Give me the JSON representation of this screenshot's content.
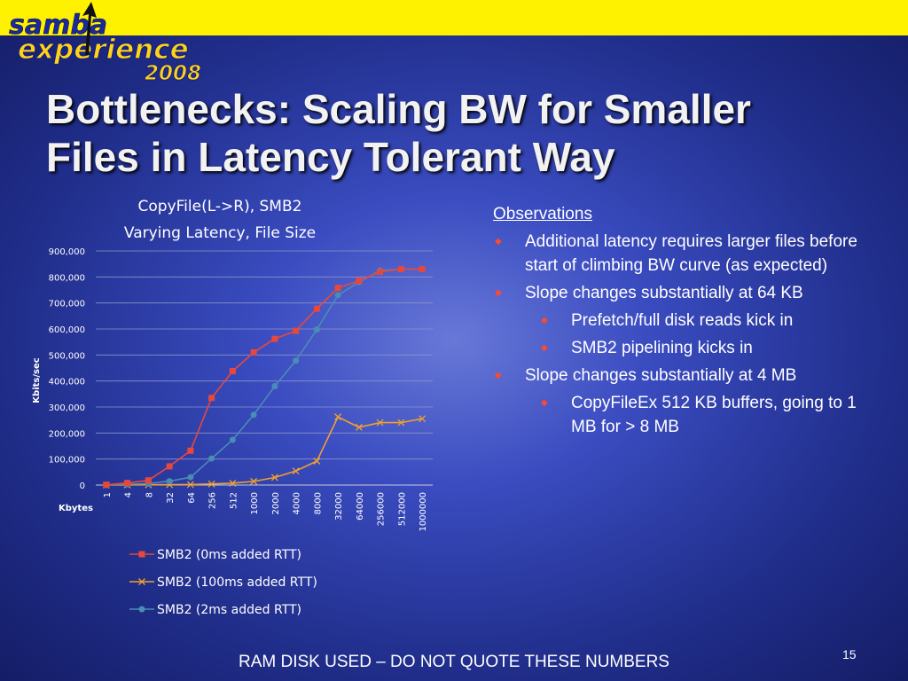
{
  "logo": {
    "line1": "samba",
    "line2": "experience",
    "line3": "2008"
  },
  "slide": {
    "title_line1": "Bottlenecks: Scaling BW for Smaller",
    "title_line2": "Files in Latency Tolerant Way",
    "footer": "RAM DISK USED – DO NOT QUOTE THESE NUMBERS",
    "page_number": "15"
  },
  "observations": {
    "heading": "Observations",
    "bullets": [
      {
        "level": 1,
        "text": "Additional latency requires larger files before start of climbing BW curve (as expected)"
      },
      {
        "level": 1,
        "text": "Slope changes substantially at 64 KB"
      },
      {
        "level": 2,
        "text": "Prefetch/full disk reads kick in"
      },
      {
        "level": 2,
        "text": "SMB2 pipelining kicks in"
      },
      {
        "level": 1,
        "text": "Slope changes substantially at 4 MB"
      },
      {
        "level": 2,
        "text": "CopyFileEx 512 KB buffers, going to 1 MB for > 8 MB"
      }
    ]
  },
  "chart_data": {
    "type": "line",
    "title_line1": "CopyFile(L->R), SMB2",
    "title_line2": "Varying Latency, File Size",
    "xlabel": "Kbytes",
    "ylabel": "Kbits/sec",
    "ylim": [
      0,
      900000
    ],
    "yticks": [
      "0",
      "100,000",
      "200,000",
      "300,000",
      "400,000",
      "500,000",
      "600,000",
      "700,000",
      "800,000",
      "900,000"
    ],
    "categories": [
      "1",
      "4",
      "8",
      "32",
      "64",
      "256",
      "512",
      "1000",
      "2000",
      "4000",
      "8000",
      "32000",
      "64000",
      "256000",
      "512000",
      "1000000"
    ],
    "grid": true,
    "legend_position": "bottom",
    "series": [
      {
        "name": "SMB2 (0ms added RTT)",
        "color": "#e8483c",
        "marker": "square",
        "values": [
          1000,
          8000,
          18000,
          72000,
          132000,
          335000,
          438000,
          510000,
          562000,
          593000,
          678000,
          758000,
          785000,
          820000,
          830000,
          830000
        ]
      },
      {
        "name": "SMB2 (100ms added RTT)",
        "color": "#f0a030",
        "marker": "x",
        "values": [
          0,
          500,
          1000,
          1500,
          2000,
          4000,
          7000,
          14000,
          29000,
          54000,
          92000,
          262000,
          222000,
          240000,
          240000,
          255000
        ]
      },
      {
        "name": "SMB2 (2ms added RTT)",
        "color": "#4a8cb4",
        "marker": "circle",
        "values": [
          500,
          3000,
          6000,
          15000,
          30000,
          102000,
          174000,
          270000,
          380000,
          478000,
          598000,
          730000,
          780000,
          825000,
          830000,
          830000
        ]
      }
    ]
  }
}
